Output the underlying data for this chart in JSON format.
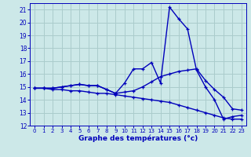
{
  "xlabel": "Graphe des températures (°c)",
  "background_color": "#cce8e8",
  "grid_color": "#aacccc",
  "line_color": "#0000bb",
  "xlim_min": -0.5,
  "xlim_max": 23.5,
  "ylim_min": 12,
  "ylim_max": 21.5,
  "yticks": [
    12,
    13,
    14,
    15,
    16,
    17,
    18,
    19,
    20,
    21
  ],
  "xticks": [
    0,
    1,
    2,
    3,
    4,
    5,
    6,
    7,
    8,
    9,
    10,
    11,
    12,
    13,
    14,
    15,
    16,
    17,
    18,
    19,
    20,
    21,
    22,
    23
  ],
  "series1": [
    14.9,
    14.9,
    14.9,
    15.0,
    15.1,
    15.2,
    15.1,
    15.1,
    14.8,
    14.5,
    15.3,
    16.4,
    16.4,
    16.9,
    15.3,
    21.2,
    20.3,
    19.5,
    16.3,
    15.0,
    14.0,
    12.5,
    12.7,
    12.8
  ],
  "series2": [
    14.9,
    14.9,
    14.9,
    15.0,
    15.1,
    15.2,
    15.1,
    15.1,
    14.8,
    14.5,
    14.6,
    14.7,
    15.0,
    15.4,
    15.8,
    16.0,
    16.2,
    16.3,
    16.4,
    15.5,
    14.8,
    14.2,
    13.3,
    13.2
  ],
  "series3": [
    14.9,
    14.9,
    14.8,
    14.8,
    14.7,
    14.7,
    14.6,
    14.5,
    14.5,
    14.4,
    14.3,
    14.2,
    14.1,
    14.0,
    13.9,
    13.8,
    13.6,
    13.4,
    13.2,
    13.0,
    12.8,
    12.6,
    12.5,
    12.5
  ]
}
